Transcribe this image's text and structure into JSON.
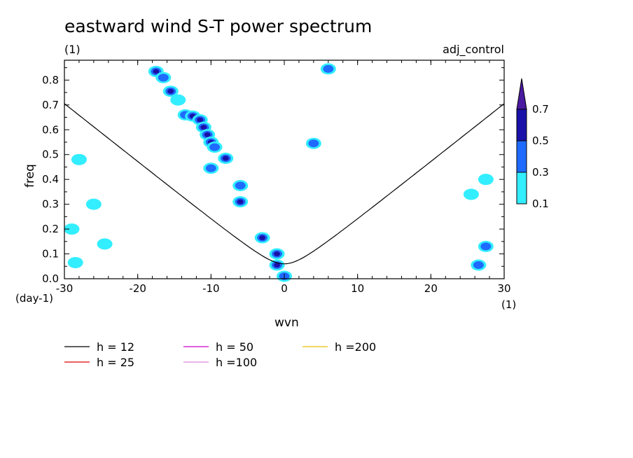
{
  "chart_data": {
    "type": "heatmap",
    "title": "eastward wind S-T power spectrum",
    "subtitle_left": "(1)",
    "subtitle_right": "adj_control",
    "xlabel": "wvn",
    "ylabel": "freq",
    "x_unit": "(1)",
    "y_unit": "(day-1)",
    "xlim": [
      -30,
      30
    ],
    "ylim": [
      0.0,
      0.88
    ],
    "x_ticks": [
      -30,
      -20,
      -10,
      0,
      10,
      20,
      30
    ],
    "y_ticks": [
      0.0,
      0.1,
      0.2,
      0.3,
      0.4,
      0.5,
      0.6,
      0.7,
      0.8
    ],
    "x_tick_labels": [
      "-30",
      "-20",
      "-10",
      "0",
      "10",
      "20",
      "30"
    ],
    "y_tick_labels": [
      "0.0",
      "0.1",
      "0.2",
      "0.3",
      "0.4",
      "0.5",
      "0.6",
      "0.7",
      "0.8"
    ],
    "colorbar": {
      "levels": [
        0.1,
        0.3,
        0.5,
        0.7
      ],
      "level_labels": [
        "0.1",
        "0.3",
        "0.5",
        "0.7"
      ],
      "colors": [
        "#33eeff",
        "#1f6bff",
        "#1a12a8",
        "#4a1aa0"
      ]
    },
    "dispersion_curves": [
      {
        "name": "h = 12",
        "h": 12,
        "color": "#000000"
      },
      {
        "name": "h = 25",
        "h": 25,
        "color": "#dd0000"
      },
      {
        "name": "h = 50",
        "h": 50,
        "color": "#cc00cc"
      },
      {
        "name": "h =100",
        "h": 100,
        "color": "#dd88dd"
      },
      {
        "name": "h =200",
        "h": 200,
        "color": "#e8c000"
      }
    ],
    "contour_blobs": [
      {
        "x": -17.5,
        "y": 0.835,
        "level": 2
      },
      {
        "x": -16.5,
        "y": 0.81,
        "level": 1
      },
      {
        "x": -15.5,
        "y": 0.755,
        "level": 2
      },
      {
        "x": -14.5,
        "y": 0.72,
        "level": 0
      },
      {
        "x": -13.5,
        "y": 0.66,
        "level": 1
      },
      {
        "x": -12.5,
        "y": 0.655,
        "level": 2
      },
      {
        "x": -11.5,
        "y": 0.64,
        "level": 2
      },
      {
        "x": -11.0,
        "y": 0.61,
        "level": 2
      },
      {
        "x": -10.5,
        "y": 0.58,
        "level": 2
      },
      {
        "x": -10.0,
        "y": 0.55,
        "level": 2
      },
      {
        "x": -9.5,
        "y": 0.53,
        "level": 1
      },
      {
        "x": -8.0,
        "y": 0.485,
        "level": 2
      },
      {
        "x": -10.0,
        "y": 0.445,
        "level": 1
      },
      {
        "x": -6.0,
        "y": 0.375,
        "level": 1
      },
      {
        "x": -6.0,
        "y": 0.31,
        "level": 2
      },
      {
        "x": -3.0,
        "y": 0.165,
        "level": 2
      },
      {
        "x": -1.0,
        "y": 0.1,
        "level": 2
      },
      {
        "x": -1.0,
        "y": 0.055,
        "level": 2
      },
      {
        "x": 0.0,
        "y": 0.01,
        "level": 1
      },
      {
        "x": 6.0,
        "y": 0.845,
        "level": 1
      },
      {
        "x": 4.0,
        "y": 0.545,
        "level": 1
      },
      {
        "x": 27.5,
        "y": 0.13,
        "level": 1
      },
      {
        "x": 26.5,
        "y": 0.055,
        "level": 1
      },
      {
        "x": -26.0,
        "y": 0.3,
        "level": 0
      },
      {
        "x": -29.0,
        "y": 0.2,
        "level": 0
      },
      {
        "x": -24.5,
        "y": 0.14,
        "level": 0
      },
      {
        "x": -28.5,
        "y": 0.065,
        "level": 0
      },
      {
        "x": -28.0,
        "y": 0.48,
        "level": 0
      },
      {
        "x": 25.5,
        "y": 0.34,
        "level": 0
      },
      {
        "x": 27.5,
        "y": 0.4,
        "level": 0
      }
    ]
  }
}
